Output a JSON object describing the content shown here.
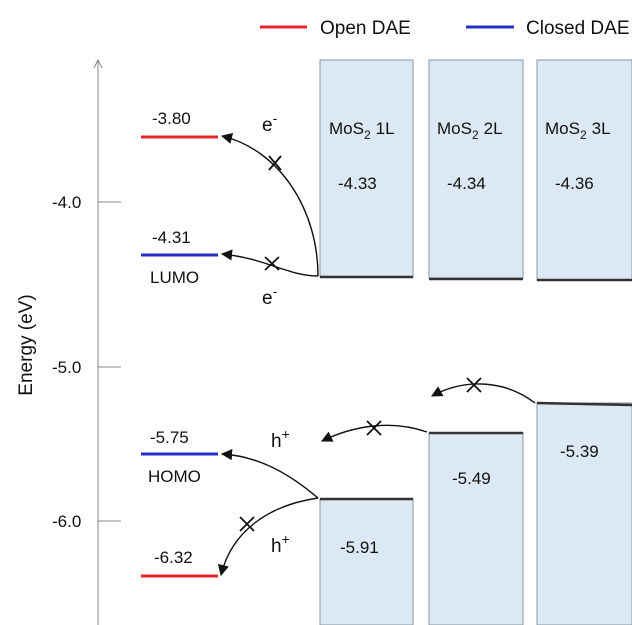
{
  "legend": {
    "open": {
      "label": "Open DAE",
      "color": "#e8242b"
    },
    "closed": {
      "label": "Closed DAE",
      "color": "#2430c8"
    }
  },
  "axis": {
    "ylabel": "Energy (eV)",
    "ticks": [
      "-4.0",
      "-5.0",
      "-6.0"
    ]
  },
  "dae": {
    "open_lumo": "-3.80",
    "closed_lumo": "-4.31",
    "closed_homo": "-5.75",
    "open_homo": "-6.32",
    "lumo_label": "LUMO",
    "homo_label": "HOMO"
  },
  "carriers": {
    "electron_base": "e",
    "electron_sup": "-",
    "hole_base": "h",
    "hole_sup": "+"
  },
  "mos2": {
    "material_base": "MoS",
    "material_sub": "2",
    "layers": [
      {
        "layer": "1L",
        "cb": "-4.33",
        "vb": "-5.91"
      },
      {
        "layer": "2L",
        "cb": "-4.34",
        "vb": "-5.49"
      },
      {
        "layer": "3L",
        "cb": "-4.36",
        "vb": "-5.39"
      }
    ]
  },
  "colors": {
    "box_fill": "#dce8f3",
    "box_stroke": "#8a98a6",
    "edge": "#333333"
  }
}
